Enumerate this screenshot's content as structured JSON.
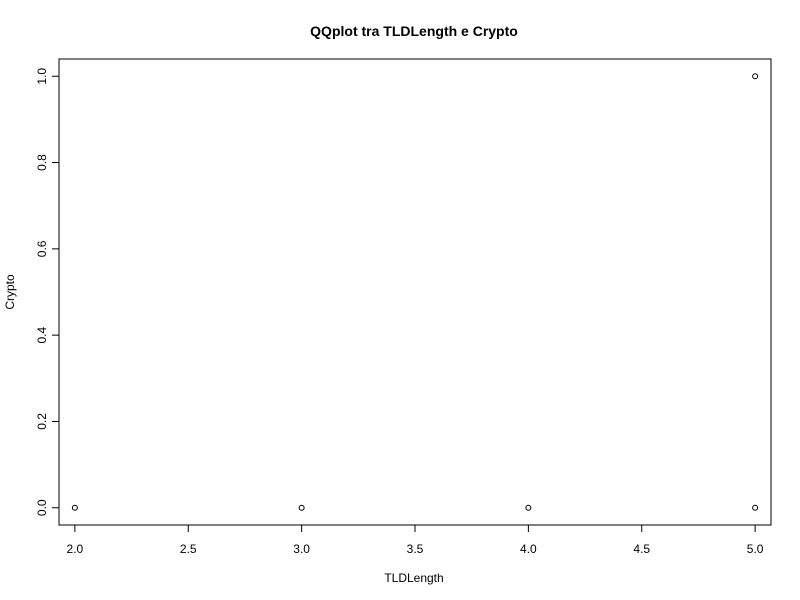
{
  "chart_data": {
    "type": "scatter",
    "title": "QQplot tra TLDLength e Crypto",
    "xlabel": "TLDLength",
    "ylabel": "Crypto",
    "xlim": [
      1.93,
      5.07
    ],
    "ylim": [
      -0.04,
      1.04
    ],
    "xticks": [
      2.0,
      2.5,
      3.0,
      3.5,
      4.0,
      4.5,
      5.0
    ],
    "xtick_labels": [
      "2.0",
      "2.5",
      "3.0",
      "3.5",
      "4.0",
      "4.5",
      "5.0"
    ],
    "yticks": [
      0.0,
      0.2,
      0.4,
      0.6,
      0.8,
      1.0
    ],
    "ytick_labels": [
      "0.0",
      "0.2",
      "0.4",
      "0.6",
      "0.8",
      "1.0"
    ],
    "grid": false,
    "points": [
      {
        "x": 2,
        "y": 0
      },
      {
        "x": 3,
        "y": 0
      },
      {
        "x": 4,
        "y": 0
      },
      {
        "x": 5,
        "y": 0
      },
      {
        "x": 5,
        "y": 1
      }
    ],
    "marker": "open-circle",
    "color": "#000000"
  }
}
